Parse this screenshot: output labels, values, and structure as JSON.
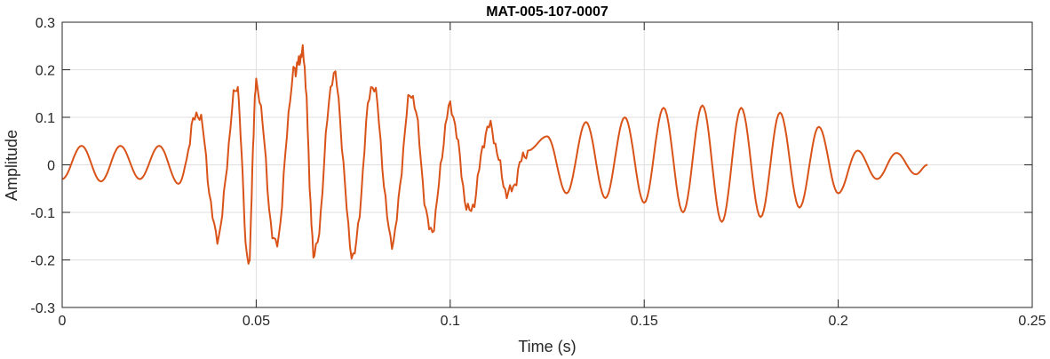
{
  "chart_data": {
    "type": "line",
    "title": "MAT-005-107-0007",
    "xlabel": "Time (s)",
    "ylabel": "Amplitude",
    "xlim": [
      0,
      0.25
    ],
    "ylim": [
      -0.3,
      0.3
    ],
    "grid": true,
    "x_ticks": [
      0,
      0.05,
      0.1,
      0.15,
      0.2,
      0.25
    ],
    "x_tick_labels": [
      "0",
      "0.05",
      "0.1",
      "0.15",
      "0.2",
      "0.25"
    ],
    "y_ticks": [
      -0.3,
      -0.2,
      -0.1,
      0,
      0.1,
      0.2,
      0.3
    ],
    "y_tick_labels": [
      "-0.3",
      "-0.2",
      "-0.1",
      "0",
      "0.1",
      "0.2",
      "0.3"
    ],
    "line_color": "#D95319",
    "series": [
      {
        "x": [
          0,
          0.005,
          0.01,
          0.015,
          0.02,
          0.025,
          0.03,
          0.035,
          0.04,
          0.045,
          0.048,
          0.05,
          0.055,
          0.06,
          0.062,
          0.065,
          0.07,
          0.075,
          0.08,
          0.085,
          0.09,
          0.095,
          0.1,
          0.105,
          0.11,
          0.115,
          0.12,
          0.125,
          0.13,
          0.135,
          0.14,
          0.145,
          0.15,
          0.155,
          0.16,
          0.165,
          0.17,
          0.175,
          0.18,
          0.185,
          0.19,
          0.195,
          0.2,
          0.205,
          0.21,
          0.215,
          0.22,
          0.223
        ],
        "y": [
          -0.03,
          0.04,
          -0.035,
          0.04,
          -0.03,
          0.04,
          -0.04,
          0.11,
          -0.15,
          0.16,
          -0.21,
          0.17,
          -0.17,
          0.2,
          0.235,
          -0.19,
          0.19,
          -0.19,
          0.17,
          -0.16,
          0.15,
          -0.14,
          0.12,
          -0.1,
          0.08,
          -0.06,
          0.03,
          0.06,
          -0.06,
          0.09,
          -0.07,
          0.1,
          -0.08,
          0.12,
          -0.1,
          0.125,
          -0.12,
          0.12,
          -0.11,
          0.11,
          -0.09,
          0.08,
          -0.06,
          0.03,
          -0.03,
          0.025,
          -0.02,
          0.0
        ]
      }
    ]
  }
}
